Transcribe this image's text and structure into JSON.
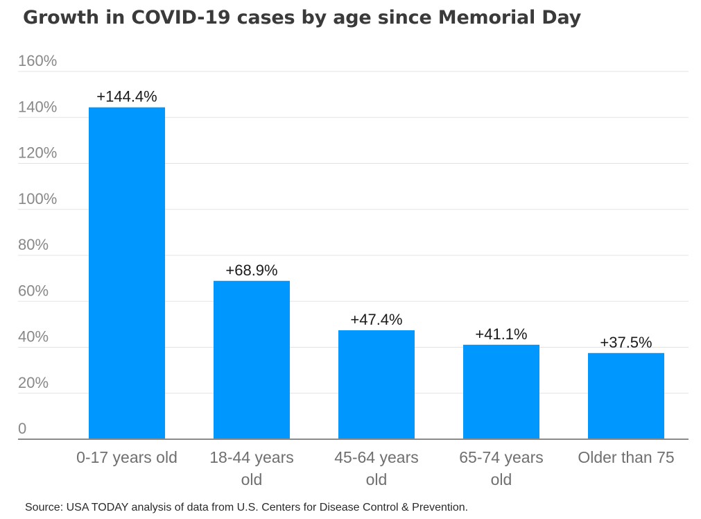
{
  "chart_data": {
    "type": "bar",
    "title": "Growth in COVID-19 cases by age since Memorial Day",
    "categories": [
      [
        "0-17 years old"
      ],
      [
        "18-44 years",
        "old"
      ],
      [
        "45-64 years",
        "old"
      ],
      [
        "65-74 years",
        "old"
      ],
      [
        "Older than 75"
      ]
    ],
    "values": [
      144.4,
      68.9,
      47.4,
      41.1,
      37.5
    ],
    "data_labels": [
      "+144.4%",
      "+68.9%",
      "+47.4%",
      "+41.1%",
      "+37.5%"
    ],
    "y_ticks": [
      {
        "value": 0,
        "label": "0"
      },
      {
        "value": 20,
        "label": "20%"
      },
      {
        "value": 40,
        "label": "40%"
      },
      {
        "value": 60,
        "label": "60%"
      },
      {
        "value": 80,
        "label": "80%"
      },
      {
        "value": 100,
        "label": "100%"
      },
      {
        "value": 120,
        "label": "120%"
      },
      {
        "value": 140,
        "label": "140%"
      },
      {
        "value": 160,
        "label": "160%"
      }
    ],
    "ylim": [
      0,
      160
    ],
    "grid": true,
    "legend": "none",
    "bar_color": "#0098fe",
    "grid_color": "#e3e3e3",
    "axis_color": "#8a8a8a"
  },
  "source": "Source: USA TODAY analysis of data from U.S. Centers for Disease Control & Prevention."
}
